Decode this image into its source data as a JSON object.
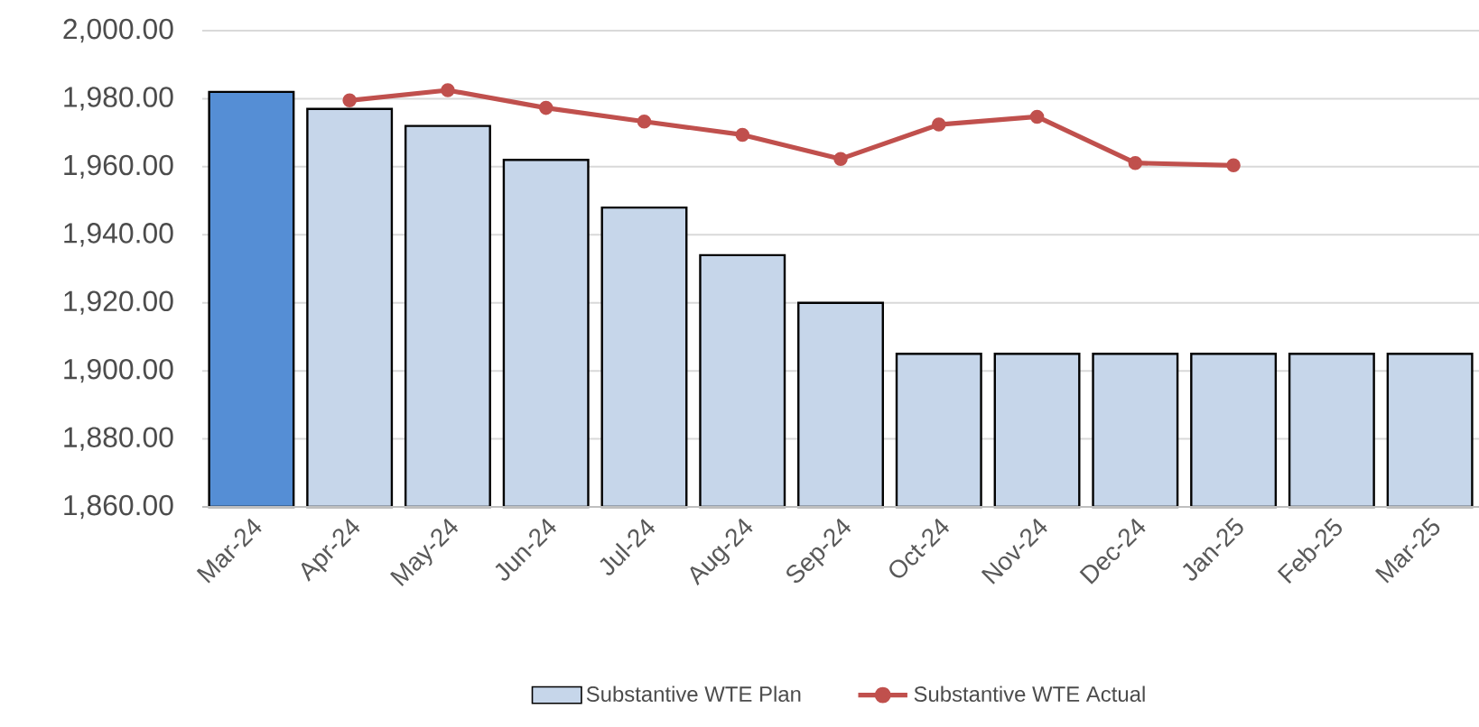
{
  "chart_data": {
    "type": "bar",
    "categories": [
      "Mar-24",
      "Apr-24",
      "May-24",
      "Jun-24",
      "Jul-24",
      "Aug-24",
      "Sep-24",
      "Oct-24",
      "Nov-24",
      "Dec-24",
      "Jan-25",
      "Feb-25",
      "Mar-25"
    ],
    "series": [
      {
        "name": "Substantive WTE Plan",
        "color": "#c6d6ea",
        "colors": [
          "#558ed5",
          "#c6d6ea",
          "#c6d6ea",
          "#c6d6ea",
          "#c6d6ea",
          "#c6d6ea",
          "#c6d6ea",
          "#c6d6ea",
          "#c6d6ea",
          "#c6d6ea",
          "#c6d6ea",
          "#c6d6ea",
          "#c6d6ea"
        ],
        "values": [
          1982,
          1977,
          1972,
          1962,
          1948,
          1934,
          1920,
          1905,
          1905,
          1905,
          1905,
          1905,
          1905
        ]
      },
      {
        "name": "Substantive WTE Actual",
        "type": "line",
        "color": "#c0504d",
        "marker": "circle",
        "values": [
          null,
          1979.5,
          1982.5,
          1977.3,
          1973.3,
          1969.4,
          1962.3,
          1972.4,
          1974.7,
          1961.1,
          1960.4,
          null,
          null
        ]
      }
    ],
    "ylim": [
      1860,
      2000
    ],
    "yticks": [
      {
        "value": 1860,
        "label": "1,860.00"
      },
      {
        "value": 1880,
        "label": "1,880.00"
      },
      {
        "value": 1900,
        "label": "1,900.00"
      },
      {
        "value": 1920,
        "label": "1,920.00"
      },
      {
        "value": 1940,
        "label": "1,940.00"
      },
      {
        "value": 1960,
        "label": "1,960.00"
      },
      {
        "value": 1980,
        "label": "1,980.00"
      },
      {
        "value": 2000,
        "label": "2,000.00"
      }
    ],
    "grid": "y",
    "legend": "bottom"
  }
}
